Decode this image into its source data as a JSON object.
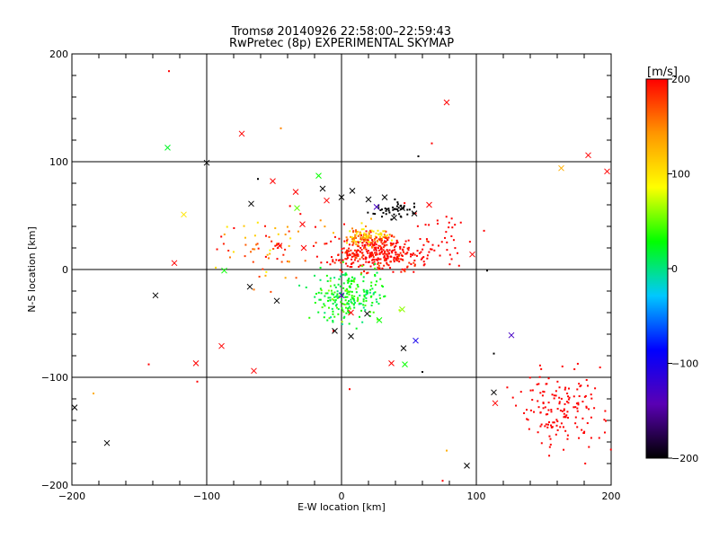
{
  "chart_data": {
    "type": "scatter",
    "title": "Tromsø 20140926 22:58:00–22:59:43",
    "subtitle": "RwPretec (8p) EXPERIMENTAL SKYMAP",
    "xlabel": "E-W location [km]",
    "ylabel": "N-S location [km]",
    "xlim": [
      -200,
      200
    ],
    "ylim": [
      -200,
      200
    ],
    "xticks": [
      -200,
      -100,
      0,
      100,
      200
    ],
    "yticks": [
      -200,
      -100,
      0,
      100,
      200
    ],
    "x_tick_labels": [
      "−200",
      "−100",
      "0",
      "100",
      "200"
    ],
    "y_tick_labels": [
      "−200",
      "−100",
      "0",
      "100",
      "200"
    ],
    "grid": true,
    "colorbar": {
      "label": "[m/s]",
      "range": [
        -200,
        200
      ],
      "ticks": [
        200,
        100,
        0,
        -100,
        -200
      ],
      "tick_labels": [
        "200",
        "100",
        "0",
        "−100",
        "−200"
      ],
      "colormap": [
        "#000000",
        "#5a00b4",
        "#0000ff",
        "#00c8ff",
        "#00ff00",
        "#ffff00",
        "#ff9600",
        "#ff0000"
      ]
    },
    "crosses": [
      {
        "x": -129,
        "y": 113,
        "v": 20
      },
      {
        "x": -100,
        "y": 99,
        "v": -200
      },
      {
        "x": -74,
        "y": 126,
        "v": 200
      },
      {
        "x": 78,
        "y": 155,
        "v": 200
      },
      {
        "x": 163,
        "y": 94,
        "v": 130
      },
      {
        "x": 183,
        "y": 106,
        "v": 200
      },
      {
        "x": 197,
        "y": 91,
        "v": 200
      },
      {
        "x": -117,
        "y": 51,
        "v": 100
      },
      {
        "x": -124,
        "y": 6,
        "v": 200
      },
      {
        "x": -138,
        "y": -24,
        "v": -200
      },
      {
        "x": -87,
        "y": -1,
        "v": 30
      },
      {
        "x": -68,
        "y": -16,
        "v": -200
      },
      {
        "x": -48,
        "y": -29,
        "v": -200
      },
      {
        "x": -89,
        "y": -71,
        "v": 200
      },
      {
        "x": -108,
        "y": -87,
        "v": 200
      },
      {
        "x": -65,
        "y": -94,
        "v": 200
      },
      {
        "x": -174,
        "y": -161,
        "v": -200
      },
      {
        "x": -198,
        "y": -128,
        "v": -200
      },
      {
        "x": -67,
        "y": 61,
        "v": -200
      },
      {
        "x": -51,
        "y": 82,
        "v": 200
      },
      {
        "x": -33,
        "y": 57,
        "v": 50
      },
      {
        "x": -29,
        "y": 42,
        "v": 200
      },
      {
        "x": -17,
        "y": 87,
        "v": 30
      },
      {
        "x": -14,
        "y": 75,
        "v": -200
      },
      {
        "x": -34,
        "y": 72,
        "v": 200
      },
      {
        "x": -11,
        "y": 64,
        "v": 200
      },
      {
        "x": 0,
        "y": 67,
        "v": -200
      },
      {
        "x": 8,
        "y": 73,
        "v": -200
      },
      {
        "x": 20,
        "y": 65,
        "v": -200
      },
      {
        "x": 26,
        "y": 58,
        "v": -130
      },
      {
        "x": 32,
        "y": 67,
        "v": -200
      },
      {
        "x": 45,
        "y": 57,
        "v": -200
      },
      {
        "x": 54,
        "y": 52,
        "v": -200
      },
      {
        "x": 39,
        "y": 48,
        "v": -200
      },
      {
        "x": 65,
        "y": 60,
        "v": 200
      },
      {
        "x": -46,
        "y": 22,
        "v": 200
      },
      {
        "x": -28,
        "y": 20,
        "v": 200
      },
      {
        "x": 97,
        "y": 14,
        "v": 200
      },
      {
        "x": 0,
        "y": -24,
        "v": -130
      },
      {
        "x": 7,
        "y": -40,
        "v": 200
      },
      {
        "x": 19,
        "y": -41,
        "v": -200
      },
      {
        "x": -5,
        "y": -57,
        "v": -200
      },
      {
        "x": 7,
        "y": -62,
        "v": -200
      },
      {
        "x": 28,
        "y": -47,
        "v": 30
      },
      {
        "x": 45,
        "y": -37,
        "v": 60
      },
      {
        "x": 55,
        "y": -66,
        "v": -100
      },
      {
        "x": 46,
        "y": -73,
        "v": -200
      },
      {
        "x": 37,
        "y": -87,
        "v": 200
      },
      {
        "x": 47,
        "y": -88,
        "v": 30
      },
      {
        "x": 126,
        "y": -61,
        "v": -130
      },
      {
        "x": 113,
        "y": -114,
        "v": -200
      },
      {
        "x": 114,
        "y": -124,
        "v": 200
      },
      {
        "x": 93,
        "y": -182,
        "v": -200
      }
    ],
    "dots": [
      {
        "x": -128,
        "y": 184,
        "v": 200
      },
      {
        "x": -45,
        "y": 131,
        "v": 150
      },
      {
        "x": 67,
        "y": 117,
        "v": 200
      },
      {
        "x": 57,
        "y": 105,
        "v": -200
      },
      {
        "x": -62,
        "y": 84,
        "v": -200
      },
      {
        "x": -143,
        "y": -88,
        "v": 200
      },
      {
        "x": -184,
        "y": -115,
        "v": 130
      },
      {
        "x": -107,
        "y": -104,
        "v": 200
      },
      {
        "x": 108,
        "y": -1,
        "v": -200
      },
      {
        "x": 113,
        "y": -78,
        "v": -200
      },
      {
        "x": 60,
        "y": -95,
        "v": -200
      },
      {
        "x": 6,
        "y": -111,
        "v": 200
      },
      {
        "x": 78,
        "y": -168,
        "v": 130
      },
      {
        "x": 75,
        "y": -196,
        "v": 200
      },
      {
        "x": -6,
        "y": -57,
        "v": 200
      },
      {
        "x": 22,
        "y": 47,
        "v": 130
      },
      {
        "x": 18,
        "y": 40,
        "v": 150
      },
      {
        "x": 27,
        "y": 36,
        "v": 100
      },
      {
        "x": 15,
        "y": 43,
        "v": 100
      },
      {
        "x": 8,
        "y": 38,
        "v": 150
      },
      {
        "x": 2,
        "y": 42,
        "v": 200
      },
      {
        "x": -6,
        "y": 34,
        "v": 120
      },
      {
        "x": 31,
        "y": 30,
        "v": 140
      }
    ],
    "clusters": [
      {
        "name": "core_red",
        "cx": 25,
        "cy": 15,
        "sx": 28,
        "sy": 13,
        "n": 360,
        "v": 200,
        "vs": 15
      },
      {
        "name": "core_orange",
        "cx": 18,
        "cy": 29,
        "sx": 13,
        "sy": 5,
        "n": 70,
        "v": 140,
        "vs": 30
      },
      {
        "name": "core_yellow",
        "cx": 20,
        "cy": 34,
        "sx": 10,
        "sy": 3,
        "n": 25,
        "v": 95,
        "vs": 10
      },
      {
        "name": "cyan_green",
        "cx": 5,
        "cy": -25,
        "sx": 20,
        "sy": 17,
        "n": 230,
        "v": 25,
        "vs": 15
      },
      {
        "name": "black_arc",
        "cx": 40,
        "cy": 55,
        "sx": 12,
        "sy": 7,
        "n": 45,
        "v": -200,
        "vs": 0
      },
      {
        "name": "left_scatter",
        "cx": -55,
        "cy": 20,
        "sx": 28,
        "sy": 25,
        "n": 70,
        "v": 160,
        "vs": 40
      },
      {
        "name": "east_red",
        "cx": 70,
        "cy": 30,
        "sx": 20,
        "sy": 22,
        "n": 45,
        "v": 200,
        "vs": 0
      },
      {
        "name": "se_red",
        "cx": 165,
        "cy": -130,
        "sx": 28,
        "sy": 30,
        "n": 160,
        "v": 200,
        "vs": 0
      }
    ]
  }
}
